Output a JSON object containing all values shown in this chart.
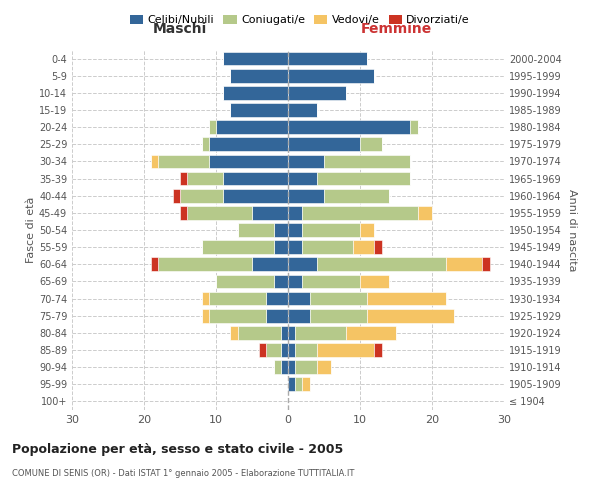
{
  "age_groups": [
    "100+",
    "95-99",
    "90-94",
    "85-89",
    "80-84",
    "75-79",
    "70-74",
    "65-69",
    "60-64",
    "55-59",
    "50-54",
    "45-49",
    "40-44",
    "35-39",
    "30-34",
    "25-29",
    "20-24",
    "15-19",
    "10-14",
    "5-9",
    "0-4"
  ],
  "birth_years": [
    "≤ 1904",
    "1905-1909",
    "1910-1914",
    "1915-1919",
    "1920-1924",
    "1925-1929",
    "1930-1934",
    "1935-1939",
    "1940-1944",
    "1945-1949",
    "1950-1954",
    "1955-1959",
    "1960-1964",
    "1965-1969",
    "1970-1974",
    "1975-1979",
    "1980-1984",
    "1985-1989",
    "1990-1994",
    "1995-1999",
    "2000-2004"
  ],
  "colors": {
    "celibe": "#336699",
    "coniugato": "#b5c98a",
    "vedovo": "#f5c464",
    "divorziato": "#cc3322"
  },
  "maschi": {
    "celibe": [
      0,
      0,
      1,
      1,
      1,
      3,
      3,
      2,
      5,
      2,
      2,
      5,
      9,
      9,
      11,
      11,
      10,
      8,
      9,
      8,
      9
    ],
    "coniugato": [
      0,
      0,
      1,
      2,
      6,
      8,
      8,
      8,
      13,
      10,
      5,
      9,
      6,
      5,
      7,
      1,
      1,
      0,
      0,
      0,
      0
    ],
    "vedovo": [
      0,
      0,
      0,
      0,
      1,
      1,
      1,
      0,
      0,
      0,
      0,
      0,
      0,
      0,
      1,
      0,
      0,
      0,
      0,
      0,
      0
    ],
    "divorziato": [
      0,
      0,
      0,
      1,
      0,
      0,
      0,
      0,
      1,
      0,
      0,
      1,
      1,
      1,
      0,
      0,
      0,
      0,
      0,
      0,
      0
    ]
  },
  "femmine": {
    "celibe": [
      0,
      1,
      1,
      1,
      1,
      3,
      3,
      2,
      4,
      2,
      2,
      2,
      5,
      4,
      5,
      10,
      17,
      4,
      8,
      12,
      11
    ],
    "coniugato": [
      0,
      1,
      3,
      3,
      7,
      8,
      8,
      8,
      18,
      7,
      8,
      16,
      9,
      13,
      12,
      3,
      1,
      0,
      0,
      0,
      0
    ],
    "vedovo": [
      0,
      1,
      2,
      8,
      7,
      12,
      11,
      4,
      5,
      3,
      2,
      2,
      0,
      0,
      0,
      0,
      0,
      0,
      0,
      0,
      0
    ],
    "divorziato": [
      0,
      0,
      0,
      1,
      0,
      0,
      0,
      0,
      1,
      1,
      0,
      0,
      0,
      0,
      0,
      0,
      0,
      0,
      0,
      0,
      0
    ]
  },
  "title": "Popolazione per età, sesso e stato civile - 2005",
  "subtitle": "COMUNE DI SENIS (OR) - Dati ISTAT 1° gennaio 2005 - Elaborazione TUTTITALIA.IT",
  "xlabel_left": "Maschi",
  "xlabel_right": "Femmine",
  "ylabel_left": "Fasce di età",
  "ylabel_right": "Anni di nascita",
  "xlim": 30,
  "legend_labels": [
    "Celibi/Nubili",
    "Coniugati/e",
    "Vedovi/e",
    "Divorziati/e"
  ],
  "background_color": "#ffffff",
  "grid_color": "#cccccc"
}
